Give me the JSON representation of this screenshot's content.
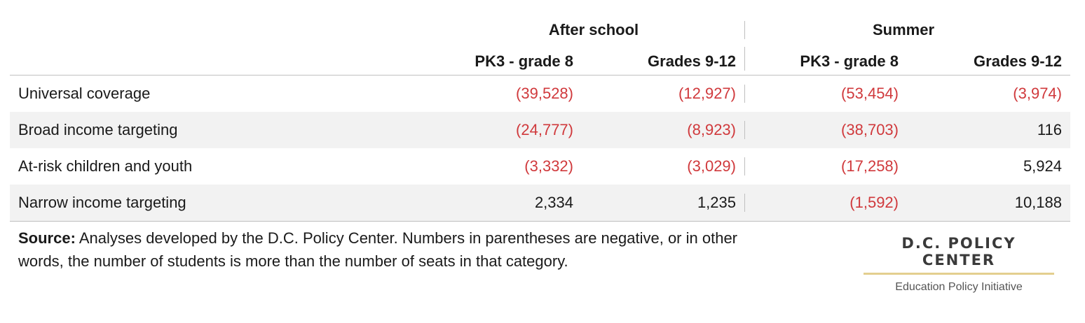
{
  "chart_data": {
    "type": "table",
    "column_groups": [
      "After school",
      "Summer"
    ],
    "columns": [
      "PK3 - grade 8",
      "Grades 9-12",
      "PK3 - grade 8",
      "Grades 9-12"
    ],
    "rows": [
      {
        "label": "Universal coverage",
        "values": [
          "(39,528)",
          "(12,927)",
          "(53,454)",
          "(3,974)"
        ],
        "numeric": [
          -39528,
          -12927,
          -53454,
          -3974
        ]
      },
      {
        "label": "Broad income targeting",
        "values": [
          "(24,777)",
          "(8,923)",
          "(38,703)",
          "116"
        ],
        "numeric": [
          -24777,
          -8923,
          -38703,
          116
        ]
      },
      {
        "label": "At-risk children and youth",
        "values": [
          "(3,332)",
          "(3,029)",
          "(17,258)",
          "5,924"
        ],
        "numeric": [
          -3332,
          -3029,
          -17258,
          5924
        ]
      },
      {
        "label": "Narrow income targeting",
        "values": [
          "2,334",
          "1,235",
          "(1,592)",
          "10,188"
        ],
        "numeric": [
          2334,
          1235,
          -1592,
          10188
        ]
      }
    ],
    "negative_color": "#d0393c",
    "positive_color": "#1a1a1a",
    "shaded_row_color": "#f2f2f2"
  },
  "source": {
    "label": "Source:",
    "text": " Analyses developed by the D.C. Policy Center. Numbers in parentheses are negative, or in other words, the number of students is more than the number of seats in that category."
  },
  "logo": {
    "name": "D.C. POLICY CENTER",
    "subtitle": "Education Policy Initiative",
    "rule_color": "#e3cf8f"
  }
}
